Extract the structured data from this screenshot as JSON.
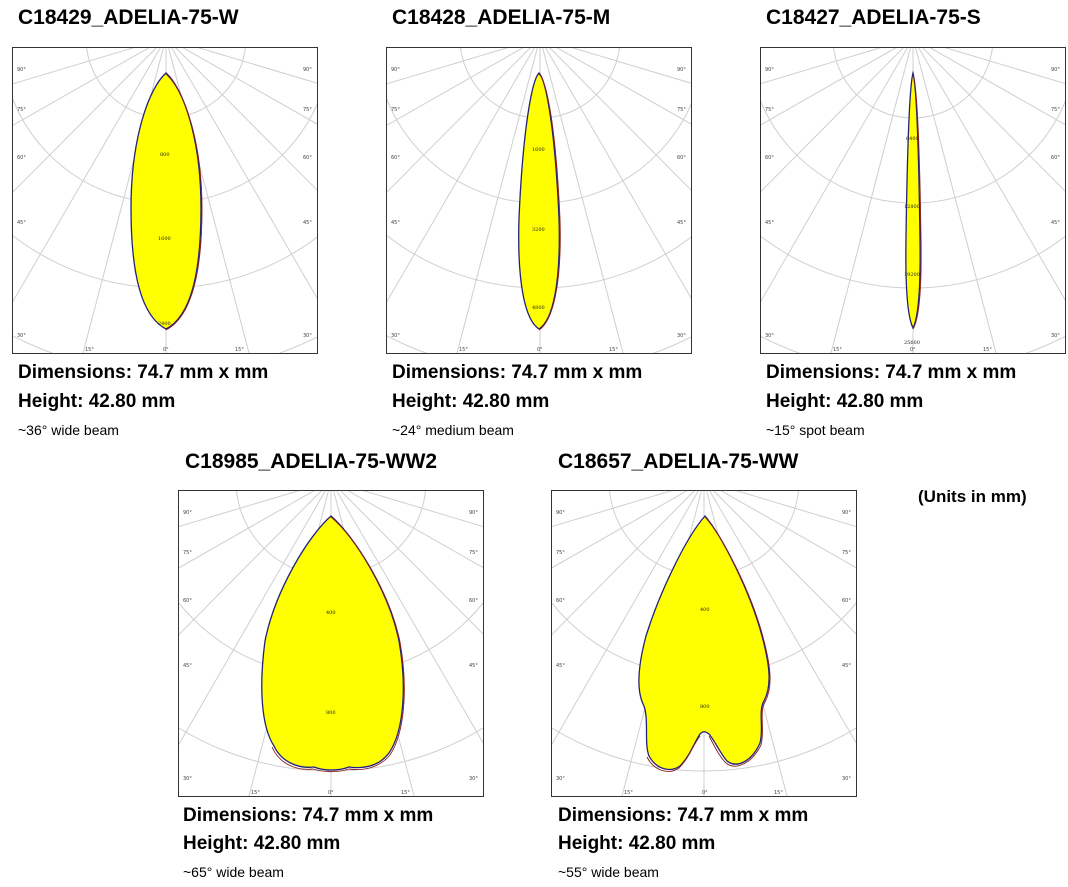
{
  "panels": [
    {
      "title": "C18429_ADELIA-75-W",
      "dimensions": "Dimensions: 74.7 mm x  mm",
      "height": "Height: 42.80 mm",
      "note": "~36° wide beam",
      "angle_labels": {
        "a90": "90°",
        "a75": "75°",
        "a60": "60°",
        "a45": "45°",
        "a30": "30°",
        "a15": "15°",
        "a0": "0°"
      },
      "candela_labels": [
        "800",
        "1600",
        "2400"
      ],
      "beam": "wide"
    },
    {
      "title": "C18428_ADELIA-75-M",
      "dimensions": "Dimensions: 74.7 mm x  mm",
      "height": "Height: 42.80 mm",
      "note": "~24° medium beam",
      "angle_labels": {
        "a90": "90°",
        "a75": "75°",
        "a60": "60°",
        "a45": "45°",
        "a30": "30°",
        "a15": "15°",
        "a0": "0°"
      },
      "candela_labels": [
        "1600",
        "3200",
        "4800"
      ],
      "beam": "medium"
    },
    {
      "title": "C18427_ADELIA-75-S",
      "dimensions": "Dimensions: 74.7 mm x  mm",
      "height": "Height: 42.80 mm",
      "note": "~15° spot beam",
      "angle_labels": {
        "a90": "90°",
        "a75": "75°",
        "a60": "60°",
        "a45": "45°",
        "a30": "30°",
        "a15": "15°",
        "a0": "0°"
      },
      "candela_labels": [
        "6400",
        "12800",
        "19200",
        "25600"
      ],
      "beam": "spot"
    },
    {
      "title": "C18985_ADELIA-75-WW2",
      "dimensions": "Dimensions: 74.7 mm x  mm",
      "height": "Height: 42.80 mm",
      "note": "~65° wide beam",
      "angle_labels": {
        "a90": "90°",
        "a75": "75°",
        "a60": "60°",
        "a45": "45°",
        "a30": "30°",
        "a15": "15°",
        "a0": "0°"
      },
      "candela_labels": [
        "400",
        "800"
      ],
      "beam": "ww2"
    },
    {
      "title": "C18657_ADELIA-75-WW",
      "dimensions": "Dimensions: 74.7 mm x  mm",
      "height": "Height: 42.80 mm",
      "note": "~55° wide beam",
      "angle_labels": {
        "a90": "90°",
        "a75": "75°",
        "a60": "60°",
        "a45": "45°",
        "a30": "30°",
        "a15": "15°",
        "a0": "0°"
      },
      "candela_labels": [
        "400",
        "800"
      ],
      "beam": "ww"
    }
  ],
  "units_note": "(Units in mm)",
  "colors": {
    "beam_fill": "#ffff00",
    "beam_outline": "#22227a",
    "beam_outline_alt": "#8b1a1a",
    "grid": "#cfcfcf"
  }
}
